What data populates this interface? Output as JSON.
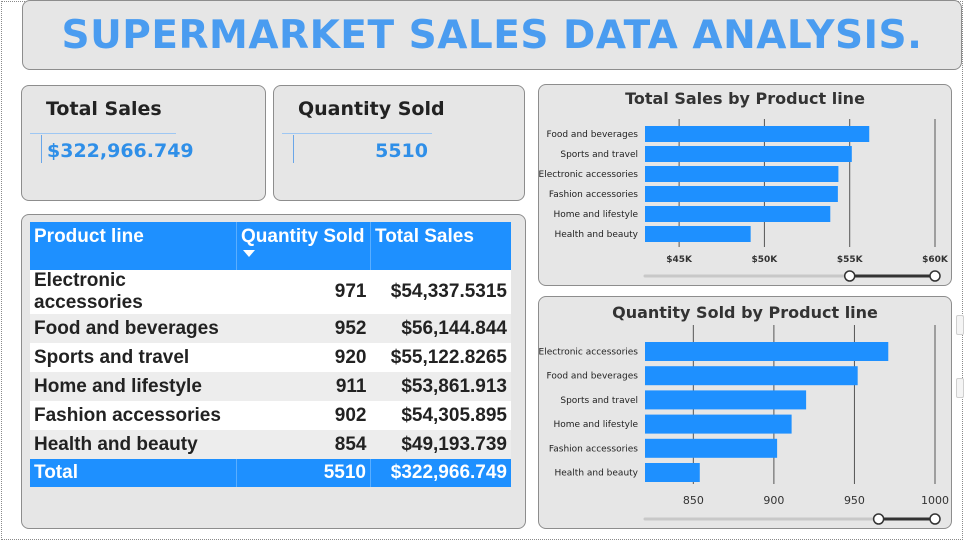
{
  "title": "SUPERMARKET SALES DATA ANALYSIS.",
  "kpis": {
    "total_sales": {
      "label": "Total Sales",
      "value": "$322,966.749"
    },
    "quantity_sold": {
      "label": "Quantity Sold",
      "value": "5510"
    }
  },
  "table": {
    "headers": [
      "Product line",
      "Quantity Sold",
      "Total Sales"
    ],
    "rows": [
      {
        "product": "Electronic accessories",
        "qty": "971",
        "sales": "$54,337.5315"
      },
      {
        "product": "Food and beverages",
        "qty": "952",
        "sales": "$56,144.844"
      },
      {
        "product": "Sports and travel",
        "qty": "920",
        "sales": "$55,122.8265"
      },
      {
        "product": "Home and lifestyle",
        "qty": "911",
        "sales": "$53,861.913"
      },
      {
        "product": "Fashion accessories",
        "qty": "902",
        "sales": "$54,305.895"
      },
      {
        "product": "Health and beauty",
        "qty": "854",
        "sales": "$49,193.739"
      }
    ],
    "total": {
      "label": "Total",
      "qty": "5510",
      "sales": "$322,966.749"
    }
  },
  "chart_data": [
    {
      "type": "bar",
      "orientation": "horizontal",
      "title": "Total Sales by Product line",
      "categories": [
        "Food and beverages",
        "Sports and travel",
        "Electronic accessories",
        "Fashion accessories",
        "Home and lifestyle",
        "Health and beauty"
      ],
      "values": [
        56144.844,
        55122.8265,
        54337.5315,
        54305.895,
        53861.913,
        49193.739
      ],
      "xlim": [
        43000,
        60000
      ],
      "ticks": [
        45000,
        50000,
        55000,
        60000
      ],
      "tick_labels": [
        "$45K",
        "$50K",
        "$55K",
        "$60K"
      ],
      "slider": {
        "from": 55000,
        "to": 60000
      },
      "color": "#1e90ff",
      "grid": true
    },
    {
      "type": "bar",
      "orientation": "horizontal",
      "title": "Quantity Sold by Product line",
      "categories": [
        "Electronic accessories",
        "Food and beverages",
        "Sports and travel",
        "Home and lifestyle",
        "Fashion accessories",
        "Health and beauty"
      ],
      "values": [
        971,
        952,
        920,
        911,
        902,
        854
      ],
      "xlim": [
        820,
        1000
      ],
      "ticks": [
        850,
        900,
        950,
        1000
      ],
      "tick_labels": [
        "850",
        "900",
        "950",
        "1000"
      ],
      "slider": {
        "from": 965,
        "to": 1000
      },
      "color": "#1e90ff",
      "grid": true
    }
  ]
}
